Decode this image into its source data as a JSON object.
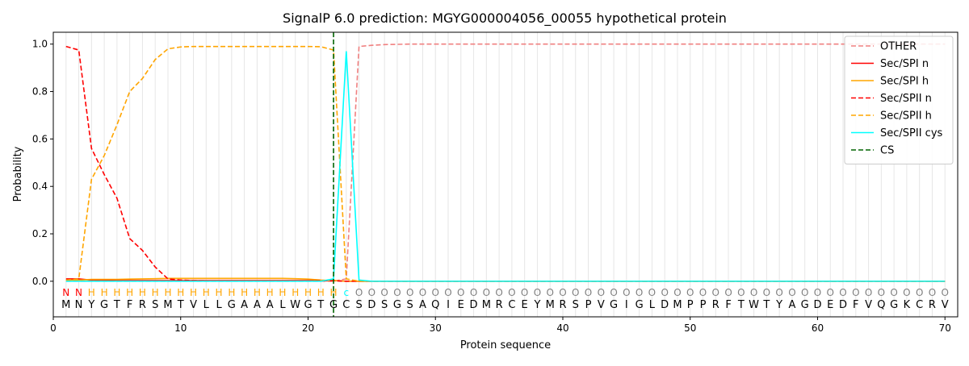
{
  "chart_data": {
    "type": "line",
    "title": "SignalP 6.0 prediction: MGYG000004056_00055 hypothetical protein",
    "xlabel": "Protein sequence",
    "ylabel": "Probability",
    "xlim": [
      0,
      71
    ],
    "ylim": [
      -0.15,
      1.05
    ],
    "xticks": [
      0,
      10,
      20,
      30,
      40,
      50,
      60,
      70
    ],
    "yticks": [
      0.0,
      0.2,
      0.4,
      0.6,
      0.8,
      1.0
    ],
    "grid": "vertical lines at each residue",
    "legend_position": "top-right",
    "sequence": [
      "M",
      "N",
      "Y",
      "G",
      "T",
      "F",
      "R",
      "S",
      "M",
      "T",
      "V",
      "L",
      "L",
      "G",
      "A",
      "A",
      "A",
      "L",
      "W",
      "G",
      "T",
      "G",
      "C",
      "S",
      "D",
      "S",
      "G",
      "S",
      "A",
      "Q",
      "I",
      "E",
      "D",
      "M",
      "R",
      "C",
      "E",
      "Y",
      "M",
      "R",
      "S",
      "P",
      "V",
      "G",
      "I",
      "G",
      "L",
      "D",
      "M",
      "P",
      "P",
      "R",
      "F",
      "T",
      "W",
      "T",
      "Y",
      "A",
      "G",
      "D",
      "E",
      "D",
      "F",
      "V",
      "Q",
      "G",
      "K",
      "C",
      "R",
      "V"
    ],
    "region_labels": [
      "N",
      "N",
      "H",
      "H",
      "H",
      "H",
      "H",
      "H",
      "H",
      "H",
      "H",
      "H",
      "H",
      "H",
      "H",
      "H",
      "H",
      "H",
      "H",
      "H",
      "H",
      "H",
      "c",
      "O",
      "O",
      "O",
      "O",
      "O",
      "O",
      "O",
      "O",
      "O",
      "O",
      "O",
      "O",
      "O",
      "O",
      "O",
      "O",
      "O",
      "O",
      "O",
      "O",
      "O",
      "O",
      "O",
      "O",
      "O",
      "O",
      "O",
      "O",
      "O",
      "O",
      "O",
      "O",
      "O",
      "O",
      "O",
      "O",
      "O",
      "O",
      "O",
      "O",
      "O",
      "O",
      "O",
      "O",
      "O",
      "O",
      "O"
    ],
    "region_label_colors": {
      "N": "#ff0000",
      "H": "#ffa500",
      "c": "#00ffff",
      "O": "#808080"
    },
    "cleavage_site": 22,
    "series": [
      {
        "name": "OTHER",
        "color": "#f08080",
        "dash": "dashed",
        "values": [
          0.0,
          0.0,
          0.0,
          0.0,
          0.0,
          0.0,
          0.0,
          0.0,
          0.0,
          0.0,
          0.0,
          0.0,
          0.0,
          0.0,
          0.0,
          0.0,
          0.0,
          0.0,
          0.0,
          0.0,
          0.0,
          0.0,
          0.01,
          0.99,
          0.995,
          0.998,
          0.999,
          1.0,
          1.0,
          1.0,
          1.0,
          1.0,
          1.0,
          1.0,
          1.0,
          1.0,
          1.0,
          1.0,
          1.0,
          1.0,
          1.0,
          1.0,
          1.0,
          1.0,
          1.0,
          1.0,
          1.0,
          1.0,
          1.0,
          1.0,
          1.0,
          1.0,
          1.0,
          1.0,
          1.0,
          1.0,
          1.0,
          1.0,
          1.0,
          1.0,
          1.0,
          1.0,
          1.0,
          1.0,
          1.0,
          1.0,
          1.0,
          1.0,
          1.0,
          1.0
        ]
      },
      {
        "name": "Sec/SPI n",
        "color": "#ff0000",
        "dash": "solid",
        "values": [
          0.01,
          0.01,
          0.005,
          0.005,
          0.003,
          0.003,
          0.003,
          0.003,
          0.003,
          0.003,
          0.003,
          0.003,
          0.003,
          0.003,
          0.003,
          0.003,
          0.003,
          0.003,
          0.003,
          0.003,
          0.003,
          0.003,
          0.0,
          0.0,
          0.0,
          0.0,
          0.0,
          0.0,
          0.0,
          0.0,
          0.0,
          0.0,
          0.0,
          0.0,
          0.0,
          0.0,
          0.0,
          0.0,
          0.0,
          0.0,
          0.0,
          0.0,
          0.0,
          0.0,
          0.0,
          0.0,
          0.0,
          0.0,
          0.0,
          0.0,
          0.0,
          0.0,
          0.0,
          0.0,
          0.0,
          0.0,
          0.0,
          0.0,
          0.0,
          0.0,
          0.0,
          0.0,
          0.0,
          0.0,
          0.0,
          0.0,
          0.0,
          0.0,
          0.0,
          0.0
        ]
      },
      {
        "name": "Sec/SPI h",
        "color": "#ffa500",
        "dash": "solid",
        "values": [
          0.005,
          0.005,
          0.008,
          0.008,
          0.008,
          0.009,
          0.01,
          0.011,
          0.012,
          0.012,
          0.012,
          0.012,
          0.012,
          0.012,
          0.012,
          0.012,
          0.012,
          0.012,
          0.011,
          0.009,
          0.005,
          0.003,
          0.0,
          0.0,
          0.0,
          0.0,
          0.0,
          0.0,
          0.0,
          0.0,
          0.0,
          0.0,
          0.0,
          0.0,
          0.0,
          0.0,
          0.0,
          0.0,
          0.0,
          0.0,
          0.0,
          0.0,
          0.0,
          0.0,
          0.0,
          0.0,
          0.0,
          0.0,
          0.0,
          0.0,
          0.0,
          0.0,
          0.0,
          0.0,
          0.0,
          0.0,
          0.0,
          0.0,
          0.0,
          0.0,
          0.0,
          0.0,
          0.0,
          0.0,
          0.0,
          0.0,
          0.0,
          0.0,
          0.0,
          0.0
        ]
      },
      {
        "name": "Sec/SPII n",
        "color": "#ff0000",
        "dash": "dashed",
        "values": [
          0.99,
          0.975,
          0.56,
          0.45,
          0.35,
          0.18,
          0.13,
          0.06,
          0.01,
          0.005,
          0.003,
          0.002,
          0.002,
          0.002,
          0.002,
          0.002,
          0.002,
          0.002,
          0.002,
          0.002,
          0.002,
          0.002,
          0.0,
          0.0,
          0.0,
          0.0,
          0.0,
          0.0,
          0.0,
          0.0,
          0.0,
          0.0,
          0.0,
          0.0,
          0.0,
          0.0,
          0.0,
          0.0,
          0.0,
          0.0,
          0.0,
          0.0,
          0.0,
          0.0,
          0.0,
          0.0,
          0.0,
          0.0,
          0.0,
          0.0,
          0.0,
          0.0,
          0.0,
          0.0,
          0.0,
          0.0,
          0.0,
          0.0,
          0.0,
          0.0,
          0.0,
          0.0,
          0.0,
          0.0,
          0.0,
          0.0,
          0.0,
          0.0,
          0.0,
          0.0
        ]
      },
      {
        "name": "Sec/SPII h",
        "color": "#ffa500",
        "dash": "dashed",
        "values": [
          0.005,
          0.01,
          0.43,
          0.53,
          0.66,
          0.8,
          0.855,
          0.935,
          0.98,
          0.988,
          0.99,
          0.99,
          0.99,
          0.99,
          0.99,
          0.99,
          0.99,
          0.99,
          0.99,
          0.99,
          0.989,
          0.975,
          0.01,
          0.0,
          0.0,
          0.0,
          0.0,
          0.0,
          0.0,
          0.0,
          0.0,
          0.0,
          0.0,
          0.0,
          0.0,
          0.0,
          0.0,
          0.0,
          0.0,
          0.0,
          0.0,
          0.0,
          0.0,
          0.0,
          0.0,
          0.0,
          0.0,
          0.0,
          0.0,
          0.0,
          0.0,
          0.0,
          0.0,
          0.0,
          0.0,
          0.0,
          0.0,
          0.0,
          0.0,
          0.0,
          0.0,
          0.0,
          0.0,
          0.0,
          0.0,
          0.0,
          0.0,
          0.0,
          0.0,
          0.0
        ]
      },
      {
        "name": "Sec/SPII cys",
        "color": "#00ffff",
        "dash": "solid",
        "values": [
          0.0,
          0.0,
          0.0,
          0.0,
          0.0,
          0.0,
          0.0,
          0.0,
          0.0,
          0.0,
          0.0,
          0.0,
          0.0,
          0.0,
          0.0,
          0.0,
          0.0,
          0.0,
          0.0,
          0.0,
          0.0,
          0.01,
          0.97,
          0.005,
          0.0,
          0.0,
          0.0,
          0.0,
          0.0,
          0.0,
          0.0,
          0.0,
          0.0,
          0.0,
          0.0,
          0.0,
          0.0,
          0.0,
          0.0,
          0.0,
          0.0,
          0.0,
          0.0,
          0.0,
          0.0,
          0.0,
          0.0,
          0.0,
          0.0,
          0.0,
          0.0,
          0.0,
          0.0,
          0.0,
          0.0,
          0.0,
          0.0,
          0.0,
          0.0,
          0.0,
          0.0,
          0.0,
          0.0,
          0.0,
          0.0,
          0.0,
          0.0,
          0.0,
          0.0,
          0.0
        ]
      },
      {
        "name": "CS",
        "color": "#006400",
        "dash": "dashed",
        "type": "vline",
        "x": 22
      }
    ]
  }
}
